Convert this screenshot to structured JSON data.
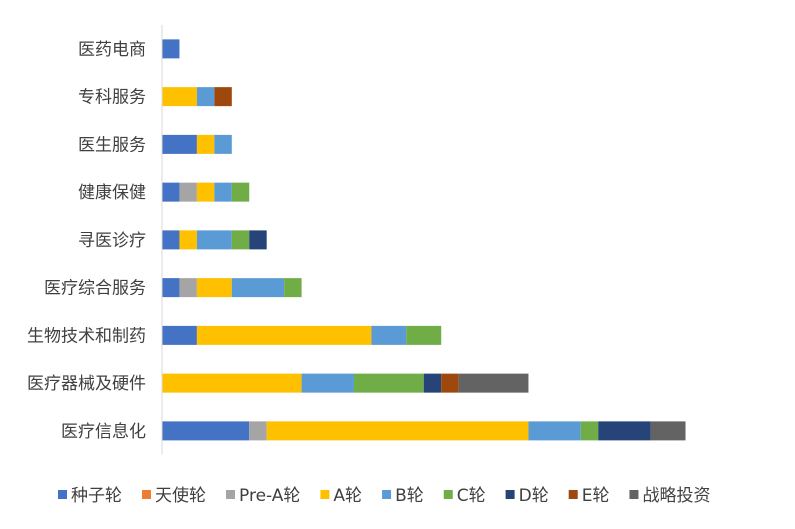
{
  "chart_data": {
    "type": "bar",
    "orientation": "horizontal",
    "stacked": true,
    "title": "",
    "xlabel": "",
    "ylabel": "",
    "xlim": [
      0,
      30
    ],
    "grid": false,
    "legend_position": "bottom",
    "categories": [
      "医药电商",
      "专科服务",
      "医生服务",
      "健康保健",
      "寻医诊疗",
      "医疗综合服务",
      "生物技术和制药",
      "医疗器械及硬件",
      "医疗信息化"
    ],
    "series": [
      {
        "name": "种子轮",
        "color": "#4472C4",
        "values": [
          1,
          0,
          2,
          1,
          1,
          1,
          2,
          0,
          5
        ]
      },
      {
        "name": "天使轮",
        "color": "#ED7D31",
        "values": [
          0,
          0,
          0,
          0,
          0,
          0,
          0,
          0,
          0
        ]
      },
      {
        "name": "Pre-A轮",
        "color": "#A5A5A5",
        "values": [
          0,
          0,
          0,
          1,
          0,
          1,
          0,
          0,
          1
        ]
      },
      {
        "name": "A轮",
        "color": "#FFC000",
        "values": [
          0,
          2,
          1,
          1,
          1,
          2,
          10,
          8,
          15
        ]
      },
      {
        "name": "B轮",
        "color": "#5B9BD5",
        "values": [
          0,
          1,
          1,
          1,
          2,
          3,
          2,
          3,
          3
        ]
      },
      {
        "name": "C轮",
        "color": "#70AD47",
        "values": [
          0,
          0,
          0,
          1,
          1,
          1,
          2,
          4,
          1
        ]
      },
      {
        "name": "D轮",
        "color": "#264478",
        "values": [
          0,
          0,
          0,
          0,
          1,
          0,
          0,
          1,
          3
        ]
      },
      {
        "name": "E轮",
        "color": "#9E480E",
        "values": [
          0,
          1,
          0,
          0,
          0,
          0,
          0,
          1,
          0
        ]
      },
      {
        "name": "战略投资",
        "color": "#636363",
        "values": [
          0,
          0,
          0,
          0,
          0,
          0,
          0,
          4,
          2
        ]
      }
    ]
  }
}
